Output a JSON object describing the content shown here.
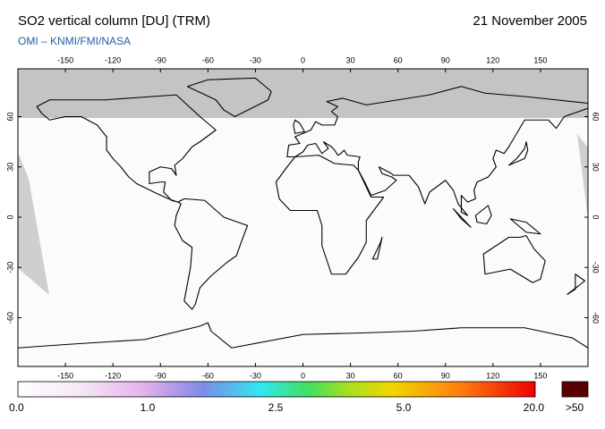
{
  "header": {
    "title": "SO2 vertical column [DU] (TRM)",
    "date": "21 November 2005",
    "subtitle": "OMI  –  KNMI/FMI/NASA"
  },
  "map": {
    "lon_ticks": [
      -150,
      -120,
      -90,
      -60,
      -30,
      0,
      30,
      60,
      90,
      120,
      150
    ],
    "lat_ticks": [
      -60,
      -30,
      0,
      30,
      60
    ]
  },
  "colorbar": {
    "labels": [
      "0.0",
      "1.0",
      "2.5",
      "5.0",
      "20.0"
    ],
    "overflow_label": ">50"
  }
}
